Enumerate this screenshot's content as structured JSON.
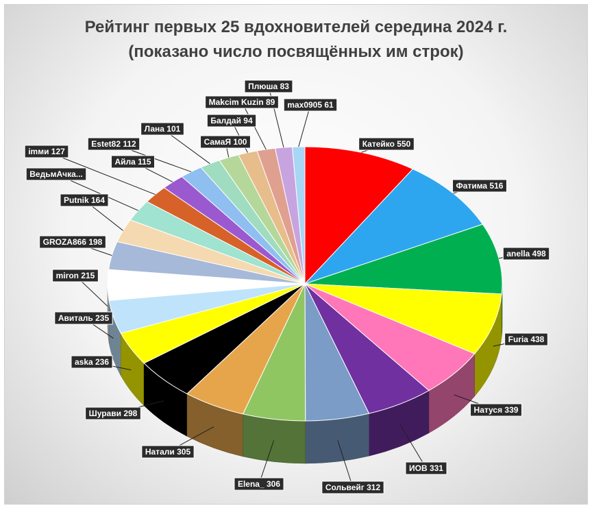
{
  "chart_data": {
    "type": "pie",
    "title": "Рейтинг первых 25 вдохновителей середина 2024 г.",
    "subtitle": "(показано число посвящённых им строк)",
    "slices": [
      {
        "label": "Катейко 550",
        "name": "Катейко",
        "value": 550,
        "color": "#ff0000"
      },
      {
        "label": "Фатима 516",
        "name": "Фатима",
        "value": 516,
        "color": "#2ea6ef"
      },
      {
        "label": "anella 498",
        "name": "anella",
        "value": 498,
        "color": "#00b050"
      },
      {
        "label": "Furia 438",
        "name": "Furia",
        "value": 438,
        "color": "#ffff00"
      },
      {
        "label": "Натуся 339",
        "name": "Натуся",
        "value": 339,
        "color": "#ff77b8"
      },
      {
        "label": "ИОВ 331",
        "name": "ИОВ",
        "value": 331,
        "color": "#7030a0"
      },
      {
        "label": "Сольвейг 312",
        "name": "Сольвейг",
        "value": 312,
        "color": "#7a9cc6"
      },
      {
        "label": "Elena_ 306",
        "name": "Elena_",
        "value": 306,
        "color": "#8fc661"
      },
      {
        "label": "Натали 305",
        "name": "Натали",
        "value": 305,
        "color": "#e6a54b"
      },
      {
        "label": "Шурави 298",
        "name": "Шурави",
        "value": 298,
        "color": "#000000"
      },
      {
        "label": "aska 236",
        "name": "aska",
        "value": 236,
        "color": "#ffff00"
      },
      {
        "label": "Авиталь 235",
        "name": "Авиталь",
        "value": 235,
        "color": "#bfe3fb"
      },
      {
        "label": "miron 215",
        "name": "miron",
        "value": 215,
        "color": "#ffffff"
      },
      {
        "label": "GROZA866 198",
        "name": "GROZA866",
        "value": 198,
        "color": "#a6b9d8"
      },
      {
        "label": "Putnik 164",
        "name": "Putnik",
        "value": 164,
        "color": "#f5d9b0"
      },
      {
        "label": "ВедьмАчка...",
        "name": "ВедьмАчка...",
        "value": 150,
        "color": "#9fe3d0"
      },
      {
        "label": "imми 127",
        "name": "imми",
        "value": 127,
        "color": "#d6622a"
      },
      {
        "label": "Айла 115",
        "name": "Айла",
        "value": 115,
        "color": "#9b59d0"
      },
      {
        "label": "Estet82 112",
        "name": "Estet82",
        "value": 112,
        "color": "#8fbff0"
      },
      {
        "label": "Лана 101",
        "name": "Лана",
        "value": 101,
        "color": "#9fdcc0"
      },
      {
        "label": "СамаЯ 100",
        "name": "СамаЯ",
        "value": 100,
        "color": "#b5d89a"
      },
      {
        "label": "Балдай 94",
        "name": "Балдай",
        "value": 94,
        "color": "#e8bd8c"
      },
      {
        "label": "Makcim Kuzin 89",
        "name": "Makcim Kuzin",
        "value": 89,
        "color": "#e0a090"
      },
      {
        "label": "Плюша 83",
        "name": "Плюша",
        "value": 83,
        "color": "#c7a4e0"
      },
      {
        "label": "max0905 61",
        "name": "max0905",
        "value": 61,
        "color": "#a8d6f5"
      }
    ]
  }
}
